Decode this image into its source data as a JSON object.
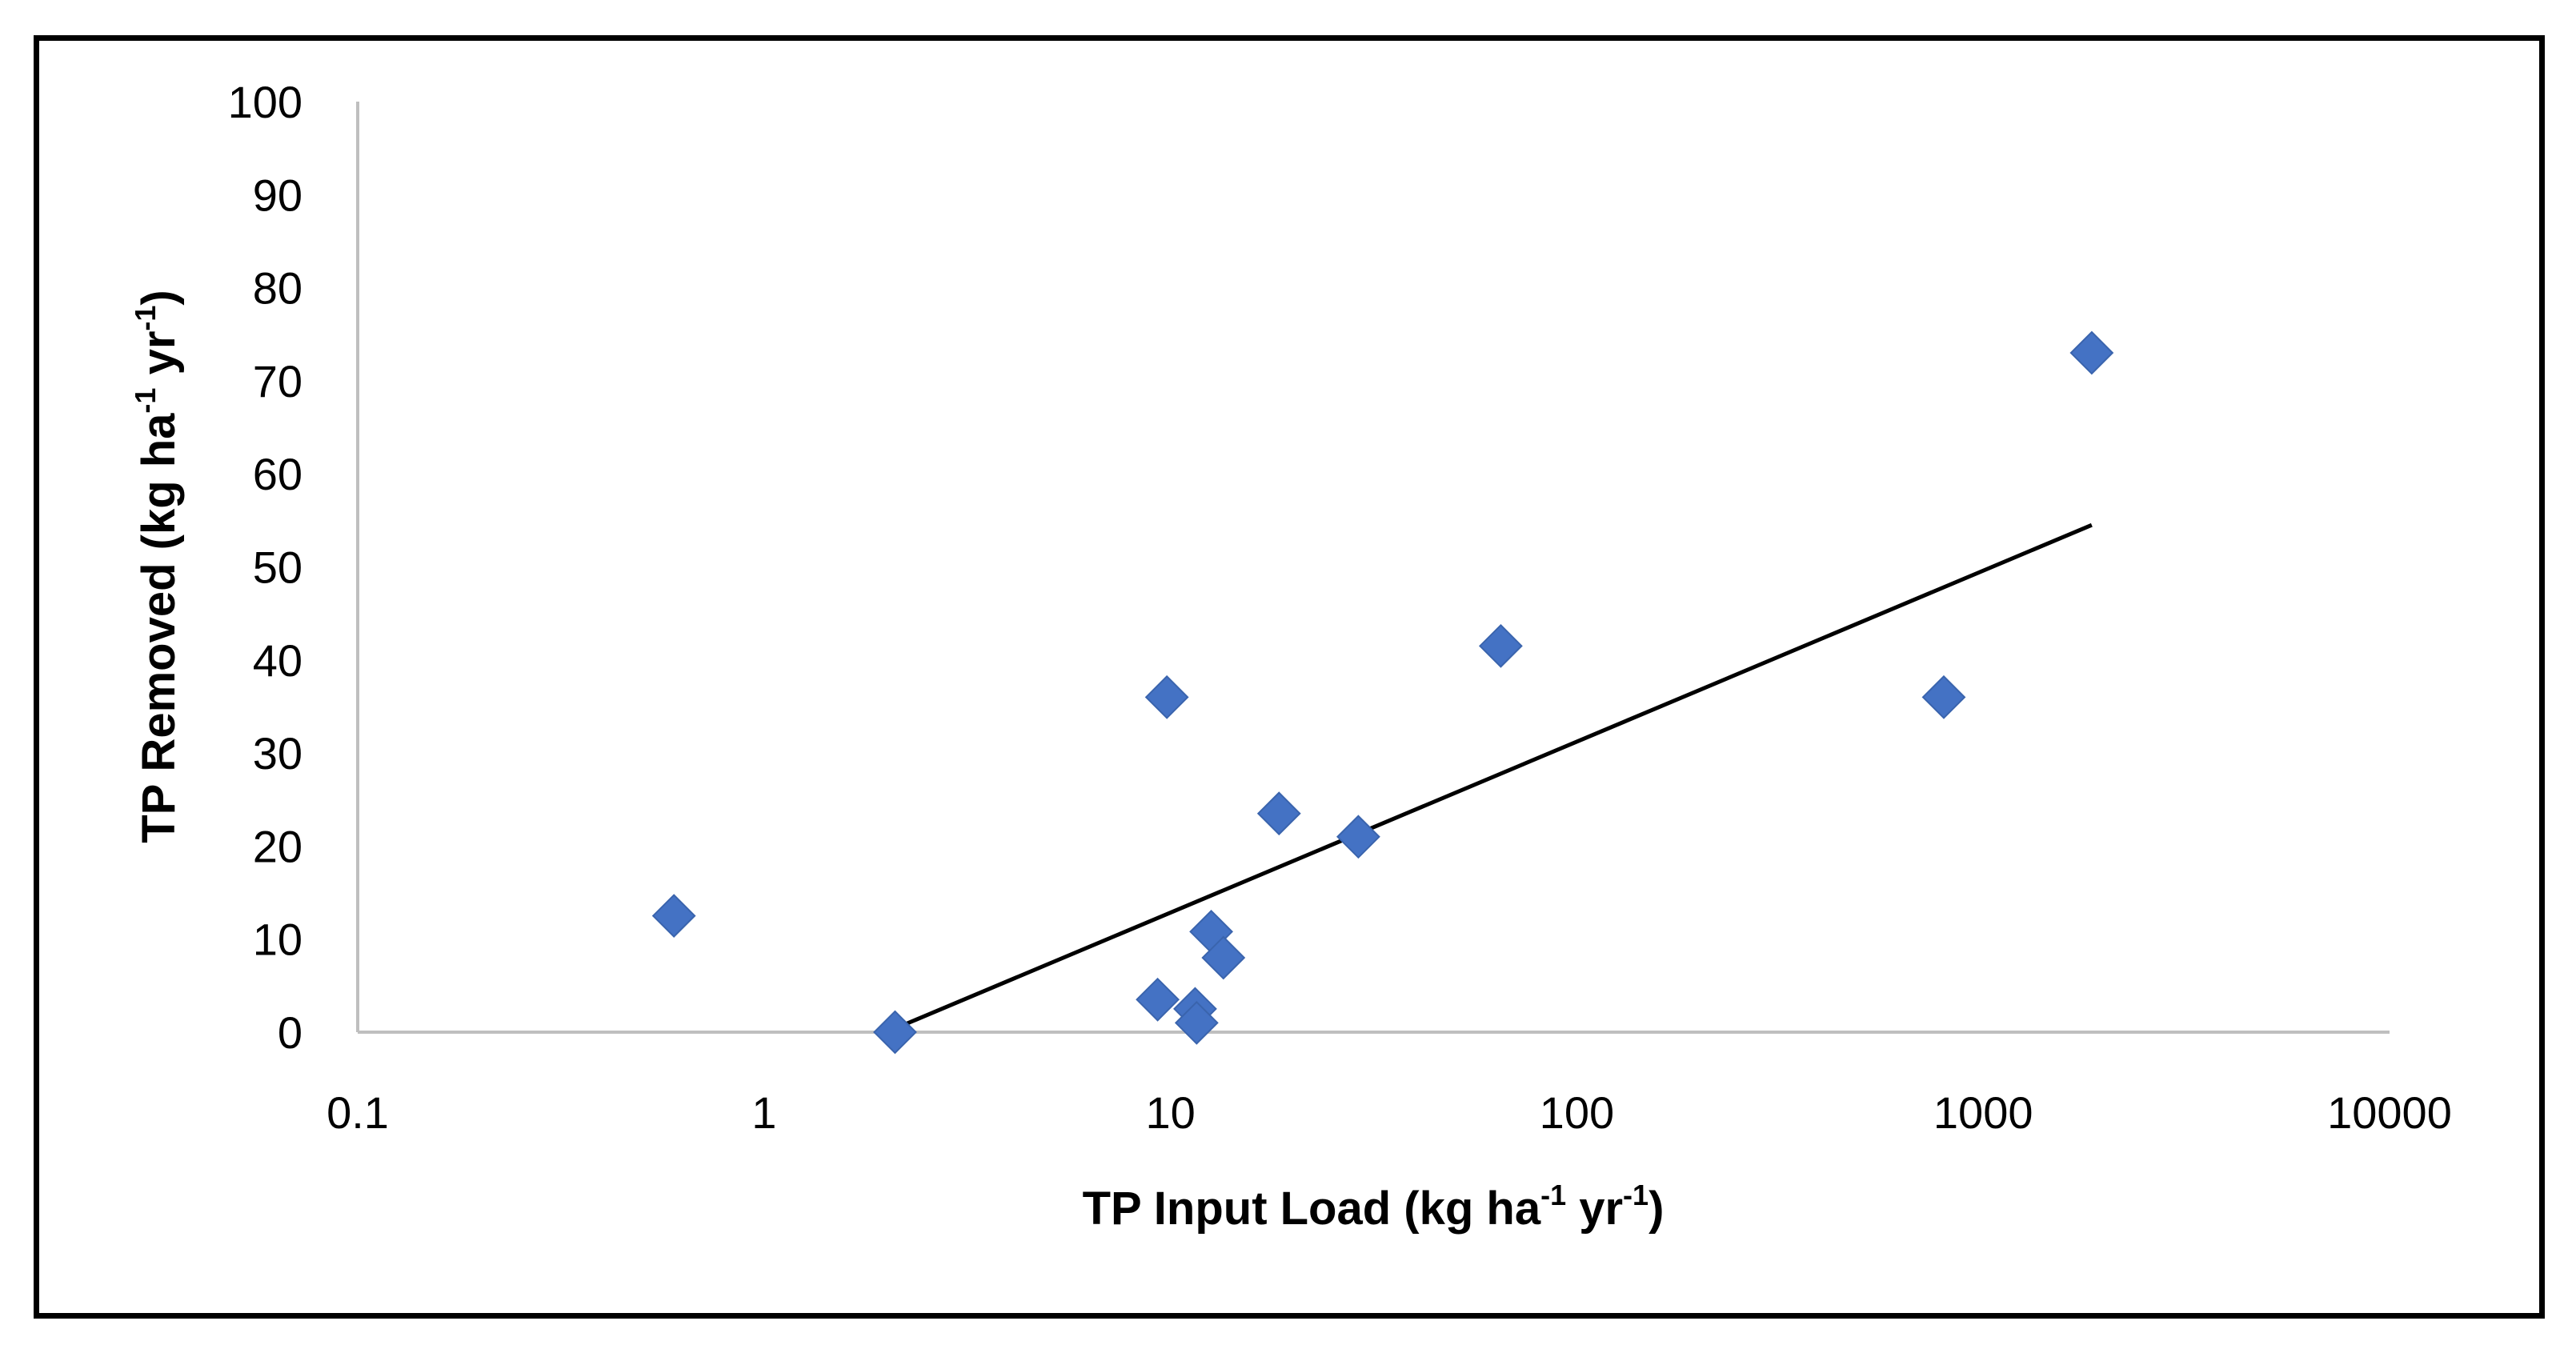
{
  "chart_data": {
    "type": "scatter",
    "title": "",
    "xlabel_parts": [
      "TP Input Load (kg ha",
      "-1",
      " yr",
      "-1",
      ")"
    ],
    "ylabel_parts": [
      "TP Removed (kg ha",
      "-1",
      " yr",
      "-1",
      ")"
    ],
    "xscale": "log",
    "xlim": [
      0.1,
      10000
    ],
    "ylim": [
      0,
      100
    ],
    "xticks": [
      0.1,
      1,
      10,
      100,
      1000,
      10000
    ],
    "xtick_labels": [
      "0.1",
      "1",
      "10",
      "100",
      "1000",
      "10000"
    ],
    "yticks": [
      0,
      10,
      20,
      30,
      40,
      50,
      60,
      70,
      80,
      90,
      100
    ],
    "ytick_labels": [
      "0",
      "10",
      "20",
      "30",
      "40",
      "50",
      "60",
      "70",
      "80",
      "90",
      "100"
    ],
    "marker": "diamond",
    "marker_color": "#4472C4",
    "points": [
      {
        "x": 0.6,
        "y": 12.5
      },
      {
        "x": 2.1,
        "y": 0
      },
      {
        "x": 9.3,
        "y": 3.5
      },
      {
        "x": 9.8,
        "y": 36
      },
      {
        "x": 11.5,
        "y": 2.5
      },
      {
        "x": 11.6,
        "y": 1.0
      },
      {
        "x": 12.6,
        "y": 10.8
      },
      {
        "x": 13.5,
        "y": 8.0
      },
      {
        "x": 18.5,
        "y": 23.5
      },
      {
        "x": 29,
        "y": 21
      },
      {
        "x": 65,
        "y": 41.5
      },
      {
        "x": 800,
        "y": 36
      },
      {
        "x": 1850,
        "y": 73
      }
    ],
    "trendline": {
      "type": "logarithmic",
      "color": "#000000",
      "points": [
        {
          "x": 2.0,
          "y": 0
        },
        {
          "x": 1850,
          "y": 54.5
        }
      ]
    }
  }
}
